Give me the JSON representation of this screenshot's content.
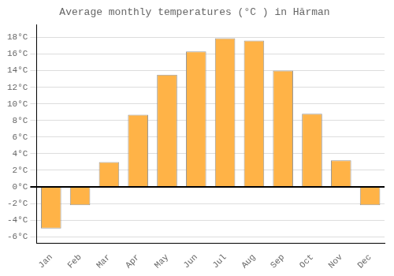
{
  "chart_data": {
    "type": "bar",
    "title": "Average monthly temperatures (°C ) in Hărman",
    "categories": [
      "Jan",
      "Feb",
      "Mar",
      "Apr",
      "May",
      "Jun",
      "Jul",
      "Aug",
      "Sep",
      "Oct",
      "Nov",
      "Dec"
    ],
    "values": [
      -5.0,
      -2.2,
      3.0,
      8.7,
      13.5,
      16.3,
      17.9,
      17.6,
      14.0,
      8.8,
      3.2,
      -2.2
    ],
    "color": "#FFB347",
    "ylim": [
      -6.8,
      19.5
    ],
    "yticks": [
      {
        "value": -6,
        "label": "-6°C"
      },
      {
        "value": -4,
        "label": "-4°C"
      },
      {
        "value": -2,
        "label": "-2°C"
      },
      {
        "value": 0,
        "label": "0°C"
      },
      {
        "value": 2,
        "label": "2°C"
      },
      {
        "value": 4,
        "label": "4°C"
      },
      {
        "value": 6,
        "label": "6°C"
      },
      {
        "value": 8,
        "label": "8°C"
      },
      {
        "value": 10,
        "label": "10°C"
      },
      {
        "value": 12,
        "label": "12°C"
      },
      {
        "value": 14,
        "label": "14°C"
      },
      {
        "value": 16,
        "label": "16°C"
      },
      {
        "value": 18,
        "label": "18°C"
      }
    ],
    "grid": true
  }
}
